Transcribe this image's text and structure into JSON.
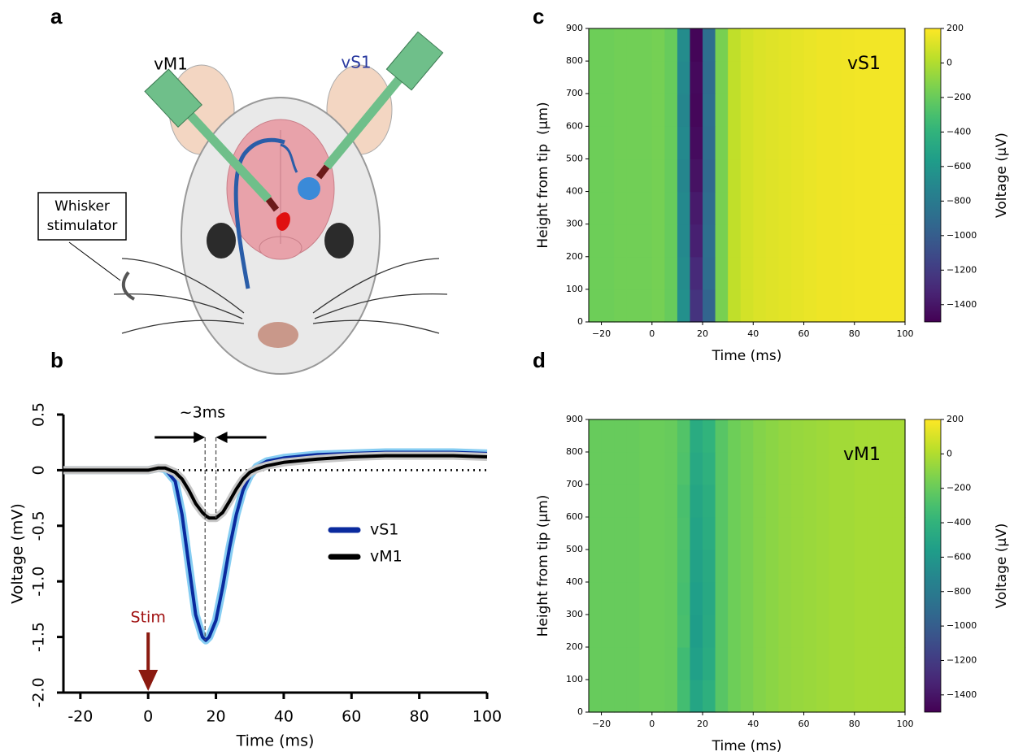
{
  "figure": {
    "panel_labels": [
      "a",
      "b",
      "c",
      "d"
    ]
  },
  "illustration": {
    "probe_labels": [
      "vM1",
      "vS1"
    ],
    "stimulator_label": [
      "Whisker",
      "stimulator"
    ]
  },
  "chart_data": [
    {
      "type": "line",
      "x_label": "Time (ms)",
      "y_label": "Voltage (mV)",
      "x": [
        -25,
        -20,
        -10,
        -5,
        0,
        3,
        5,
        8,
        10,
        12,
        14,
        16,
        17,
        18,
        20,
        22,
        24,
        26,
        28,
        30,
        32,
        35,
        40,
        50,
        60,
        70,
        80,
        90,
        100
      ],
      "series": [
        {
          "name": "vS1",
          "color": "#0a2a9e",
          "band_color": "#86cdf2",
          "values": [
            0,
            0,
            0,
            0,
            0,
            0.02,
            0.01,
            -0.1,
            -0.4,
            -0.85,
            -1.3,
            -1.5,
            -1.53,
            -1.5,
            -1.35,
            -1.05,
            -0.7,
            -0.4,
            -0.18,
            -0.05,
            0.03,
            0.08,
            0.11,
            0.14,
            0.15,
            0.16,
            0.16,
            0.16,
            0.15
          ]
        },
        {
          "name": "vM1",
          "color": "#000000",
          "band_color": "#c8c8c8",
          "values": [
            0,
            0,
            0,
            0,
            0,
            0.02,
            0.02,
            -0.02,
            -0.08,
            -0.18,
            -0.3,
            -0.38,
            -0.41,
            -0.43,
            -0.43,
            -0.38,
            -0.28,
            -0.17,
            -0.08,
            -0.02,
            0.01,
            0.04,
            0.07,
            0.1,
            0.12,
            0.13,
            0.13,
            0.13,
            0.12
          ]
        }
      ],
      "xlim": [
        -25,
        100
      ],
      "ylim": [
        -2,
        0.5
      ],
      "xticks": [
        -20,
        0,
        20,
        40,
        60,
        80,
        100
      ],
      "yticks": [
        {
          "value": -2,
          "label": "-2.0"
        },
        -1.5,
        {
          "value": -1,
          "label": "-1.0"
        },
        -0.5,
        0,
        0.5
      ],
      "zero_line": 0,
      "annotations": {
        "delay_label": "~3ms",
        "peak_x": [
          16.8,
          20
        ],
        "stim_label": "Stim",
        "stim_x": 0
      }
    },
    {
      "type": "heatmap",
      "title": "vS1",
      "x_label": "Time (ms)",
      "y_label": "Height from tip  (μm)",
      "colorbar_label": "Voltage (μV)",
      "x_bins": [
        -25,
        -20,
        -15,
        -10,
        -5,
        0,
        5,
        10,
        15,
        20,
        25,
        30,
        35,
        40,
        45,
        50,
        55,
        60,
        65,
        70,
        75,
        80,
        85,
        90,
        95,
        100
      ],
      "y_bins": [
        0,
        100,
        200,
        300,
        400,
        500,
        600,
        700,
        800,
        900
      ],
      "values": [
        [
          -180,
          -180,
          -170,
          -170,
          -170,
          -160,
          -200,
          -650,
          -1250,
          -950,
          -150,
          40,
          90,
          110,
          120,
          130,
          140,
          150,
          160,
          160,
          165,
          170,
          170,
          175,
          175
        ],
        [
          -180,
          -180,
          -170,
          -170,
          -170,
          -160,
          -200,
          -680,
          -1300,
          -900,
          -150,
          40,
          90,
          110,
          120,
          130,
          140,
          150,
          160,
          160,
          165,
          170,
          170,
          175,
          175
        ],
        [
          -180,
          -180,
          -170,
          -170,
          -170,
          -160,
          -200,
          -700,
          -1350,
          -880,
          -150,
          40,
          90,
          110,
          120,
          130,
          140,
          150,
          160,
          160,
          165,
          170,
          170,
          175,
          175
        ],
        [
          -180,
          -180,
          -170,
          -170,
          -170,
          -160,
          -200,
          -700,
          -1380,
          -900,
          -150,
          40,
          90,
          110,
          120,
          130,
          140,
          150,
          160,
          160,
          165,
          170,
          170,
          175,
          175
        ],
        [
          -180,
          -180,
          -170,
          -170,
          -170,
          -160,
          -200,
          -720,
          -1420,
          -920,
          -150,
          40,
          90,
          110,
          120,
          130,
          140,
          150,
          160,
          160,
          165,
          170,
          170,
          175,
          175
        ],
        [
          -180,
          -180,
          -170,
          -170,
          -170,
          -160,
          -200,
          -700,
          -1450,
          -900,
          -150,
          40,
          90,
          110,
          120,
          130,
          140,
          150,
          160,
          160,
          165,
          170,
          170,
          175,
          175
        ],
        [
          -180,
          -180,
          -170,
          -170,
          -170,
          -160,
          -200,
          -720,
          -1470,
          -880,
          -150,
          40,
          90,
          110,
          120,
          130,
          140,
          150,
          160,
          160,
          165,
          170,
          170,
          175,
          175
        ],
        [
          -180,
          -180,
          -170,
          -170,
          -170,
          -160,
          -200,
          -700,
          -1460,
          -900,
          -150,
          40,
          90,
          110,
          120,
          130,
          140,
          150,
          160,
          160,
          165,
          170,
          170,
          175,
          175
        ],
        [
          -180,
          -180,
          -170,
          -170,
          -170,
          -160,
          -200,
          -680,
          -1480,
          -880,
          -150,
          40,
          90,
          110,
          120,
          130,
          140,
          150,
          160,
          160,
          165,
          170,
          170,
          175,
          175
        ]
      ],
      "xlim": [
        -25,
        100
      ],
      "ylim": [
        0,
        900
      ],
      "clim": [
        -1500,
        200
      ],
      "xticks": [
        {
          "value": -20,
          "label": "−20"
        },
        0,
        20,
        40,
        60,
        80,
        100
      ],
      "yticks": [
        0,
        100,
        200,
        300,
        400,
        500,
        600,
        700,
        800,
        900
      ],
      "colorbar_ticks": [
        200,
        0,
        {
          "value": -200,
          "label": "−200"
        },
        {
          "value": -400,
          "label": "−400"
        },
        {
          "value": -600,
          "label": "−600"
        },
        {
          "value": -800,
          "label": "−800"
        },
        {
          "value": -1000,
          "label": "−1000"
        },
        {
          "value": -1200,
          "label": "−1200"
        },
        {
          "value": -1400,
          "label": "−1400"
        }
      ],
      "colormap": "viridis"
    },
    {
      "type": "heatmap",
      "title": "vM1",
      "x_label": "Time (ms)",
      "y_label": "Height from tip (μm)",
      "colorbar_label": "Voltage (μV)",
      "x_bins": [
        -25,
        -20,
        -15,
        -10,
        -5,
        0,
        5,
        10,
        15,
        20,
        25,
        30,
        35,
        40,
        45,
        50,
        55,
        60,
        65,
        70,
        75,
        80,
        85,
        90,
        95,
        100
      ],
      "y_bins": [
        0,
        100,
        200,
        300,
        400,
        500,
        600,
        700,
        800,
        900
      ],
      "values": [
        [
          -200,
          -200,
          -200,
          -200,
          -190,
          -190,
          -200,
          -320,
          -500,
          -430,
          -250,
          -180,
          -150,
          -120,
          -100,
          -80,
          -70,
          -60,
          -50,
          -40,
          -40,
          -30,
          -30,
          -30,
          -30
        ],
        [
          -200,
          -200,
          -200,
          -200,
          -190,
          -190,
          -200,
          -330,
          -540,
          -460,
          -250,
          -180,
          -150,
          -120,
          -100,
          -80,
          -70,
          -60,
          -50,
          -40,
          -40,
          -30,
          -30,
          -30,
          -30
        ],
        [
          -200,
          -200,
          -200,
          -200,
          -190,
          -190,
          -200,
          -300,
          -560,
          -470,
          -250,
          -180,
          -150,
          -120,
          -100,
          -80,
          -70,
          -60,
          -50,
          -40,
          -40,
          -30,
          -30,
          -30,
          -30
        ],
        [
          -200,
          -200,
          -200,
          -200,
          -190,
          -190,
          -200,
          -310,
          -550,
          -480,
          -250,
          -180,
          -150,
          -120,
          -100,
          -80,
          -70,
          -60,
          -50,
          -40,
          -40,
          -30,
          -30,
          -30,
          -30
        ],
        [
          -200,
          -200,
          -200,
          -200,
          -190,
          -190,
          -200,
          -300,
          -530,
          -470,
          -250,
          -180,
          -150,
          -120,
          -100,
          -80,
          -70,
          -60,
          -50,
          -40,
          -40,
          -30,
          -30,
          -30,
          -30
        ],
        [
          -200,
          -200,
          -200,
          -200,
          -190,
          -190,
          -200,
          -290,
          -520,
          -450,
          -250,
          -180,
          -150,
          -120,
          -100,
          -80,
          -70,
          -60,
          -50,
          -40,
          -40,
          -30,
          -30,
          -30,
          -30
        ],
        [
          -200,
          -200,
          -200,
          -200,
          -190,
          -190,
          -200,
          -300,
          -500,
          -440,
          -250,
          -180,
          -150,
          -120,
          -100,
          -80,
          -70,
          -60,
          -50,
          -40,
          -40,
          -30,
          -30,
          -30,
          -30
        ],
        [
          -200,
          -200,
          -200,
          -200,
          -190,
          -190,
          -200,
          -280,
          -480,
          -420,
          -250,
          -180,
          -150,
          -120,
          -100,
          -80,
          -70,
          -60,
          -50,
          -40,
          -40,
          -30,
          -30,
          -30,
          -30
        ],
        [
          -200,
          -200,
          -200,
          -200,
          -190,
          -190,
          -200,
          -270,
          -460,
          -400,
          -250,
          -180,
          -150,
          -120,
          -100,
          -80,
          -70,
          -60,
          -50,
          -40,
          -40,
          -30,
          -30,
          -30,
          -30
        ]
      ],
      "xlim": [
        -25,
        100
      ],
      "ylim": [
        0,
        900
      ],
      "clim": [
        -1500,
        200
      ],
      "xticks": [
        {
          "value": -20,
          "label": "−20"
        },
        0,
        20,
        40,
        60,
        80,
        100
      ],
      "yticks": [
        0,
        100,
        200,
        300,
        400,
        500,
        600,
        700,
        800,
        900
      ],
      "colorbar_ticks": [
        200,
        0,
        {
          "value": -200,
          "label": "−200"
        },
        {
          "value": -400,
          "label": "−400"
        },
        {
          "value": -600,
          "label": "−600"
        },
        {
          "value": -800,
          "label": "−800"
        },
        {
          "value": -1000,
          "label": "−1000"
        },
        {
          "value": -1200,
          "label": "−1200"
        },
        {
          "value": -1400,
          "label": "−1400"
        }
      ],
      "colormap": "viridis"
    }
  ]
}
